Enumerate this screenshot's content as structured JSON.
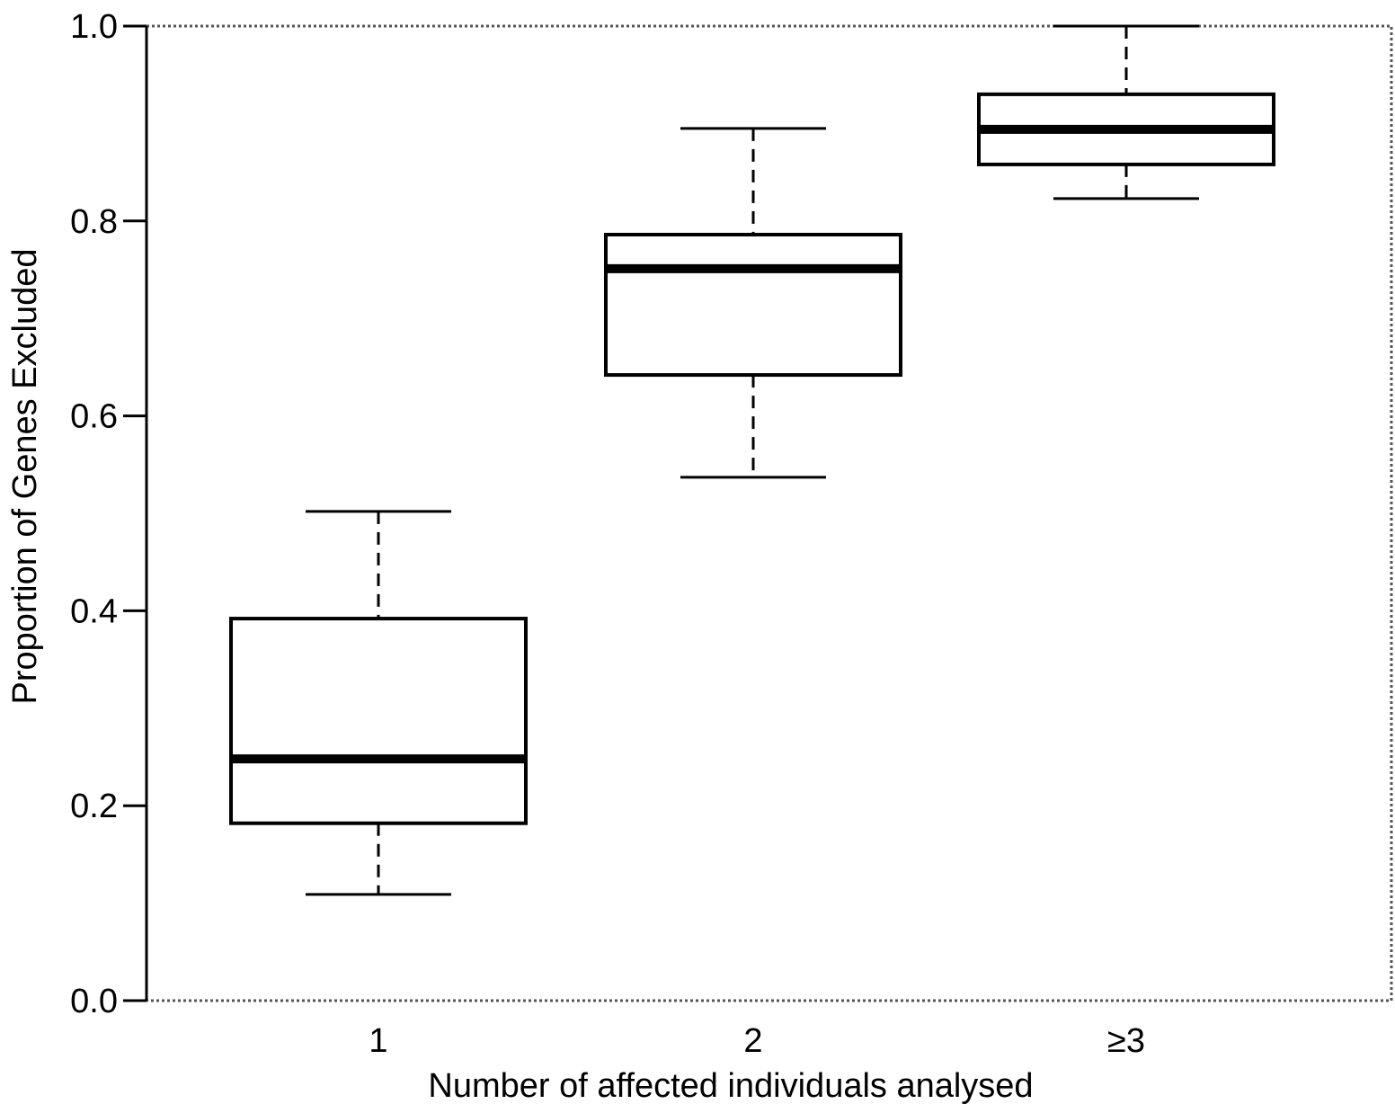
{
  "chart_data": {
    "type": "box",
    "xlabel": "Number of affected individuals analysed",
    "ylabel": "Proportion of Genes Excluded",
    "ylim": [
      0.0,
      1.0
    ],
    "yticks": [
      "0.0",
      "0.2",
      "0.4",
      "0.6",
      "0.8",
      "1.0"
    ],
    "categories": [
      "1",
      "2",
      "≥3"
    ],
    "boxes": [
      {
        "category": "1",
        "whisker_low": 0.109,
        "q1": 0.182,
        "median": 0.248,
        "q3": 0.392,
        "whisker_high": 0.502
      },
      {
        "category": "2",
        "whisker_low": 0.537,
        "q1": 0.642,
        "median": 0.751,
        "q3": 0.786,
        "whisker_high": 0.895
      },
      {
        "category": "≥3",
        "whisker_low": 0.823,
        "q1": 0.858,
        "median": 0.894,
        "q3": 0.93,
        "whisker_high": 1.0
      }
    ],
    "grid": false,
    "legend": "none",
    "colors": {
      "box_fill": "#ffffff",
      "stroke": "#000000",
      "frame": "#555555"
    }
  }
}
